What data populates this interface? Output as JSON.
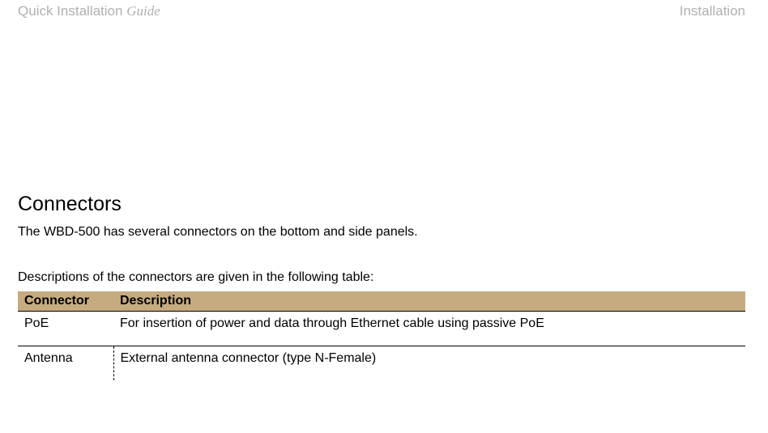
{
  "header": {
    "left_primary": "Quick Installation ",
    "left_secondary": "Guide",
    "right": "Installation"
  },
  "section": {
    "title": "Connectors",
    "intro1": "The WBD-500 has several connectors on the bottom and side panels.",
    "intro2": "Descriptions of the connectors are given in the following table:"
  },
  "table": {
    "columns": [
      "Connector",
      "Description"
    ],
    "rows": [
      [
        "PoE",
        "For insertion of power and data through Ethernet cable using passive PoE"
      ],
      [
        "Antenna",
        "External antenna connector (type N-Female)"
      ]
    ]
  },
  "colors": {
    "header_gray": "#b0b0b0",
    "table_header_bg": "#c6ab81",
    "text": "#000000",
    "bg": "#ffffff"
  }
}
